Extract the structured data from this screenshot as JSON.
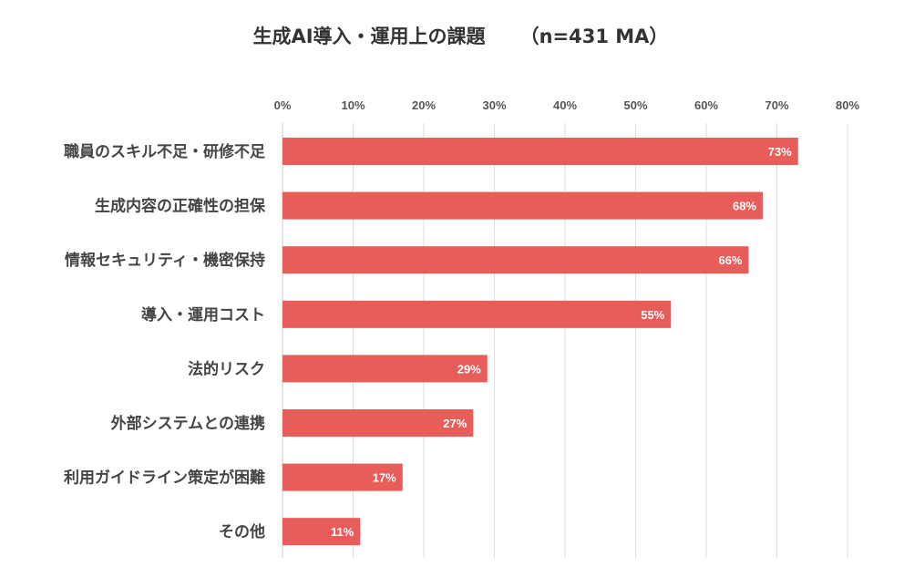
{
  "chart_data": {
    "type": "bar",
    "orientation": "horizontal",
    "title": "生成AI導入・運用上の課題",
    "subtitle": "（n=431 MA）",
    "categories": [
      "職員のスキル不足・研修不足",
      "生成内容の正確性の担保",
      "情報セキュリティ・機密保持",
      "導入・運用コスト",
      "法的リスク",
      "外部システムとの連携",
      "利用ガイドライン策定が困難",
      "その他"
    ],
    "values": [
      73,
      68,
      66,
      55,
      29,
      27,
      17,
      11
    ],
    "data_labels": [
      "73%",
      "68%",
      "66%",
      "55%",
      "29%",
      "27%",
      "17%",
      "11%"
    ],
    "xlim": [
      0,
      80
    ],
    "ticks": [
      "0%",
      "10%",
      "20%",
      "30%",
      "40%",
      "50%",
      "60%",
      "70%",
      "80%"
    ],
    "tick_values": [
      0,
      10,
      20,
      30,
      40,
      50,
      60,
      70,
      80
    ],
    "axis_position": "top",
    "grid": true,
    "bar_color": "#e85c5a",
    "grid_color": "#dddddd"
  }
}
